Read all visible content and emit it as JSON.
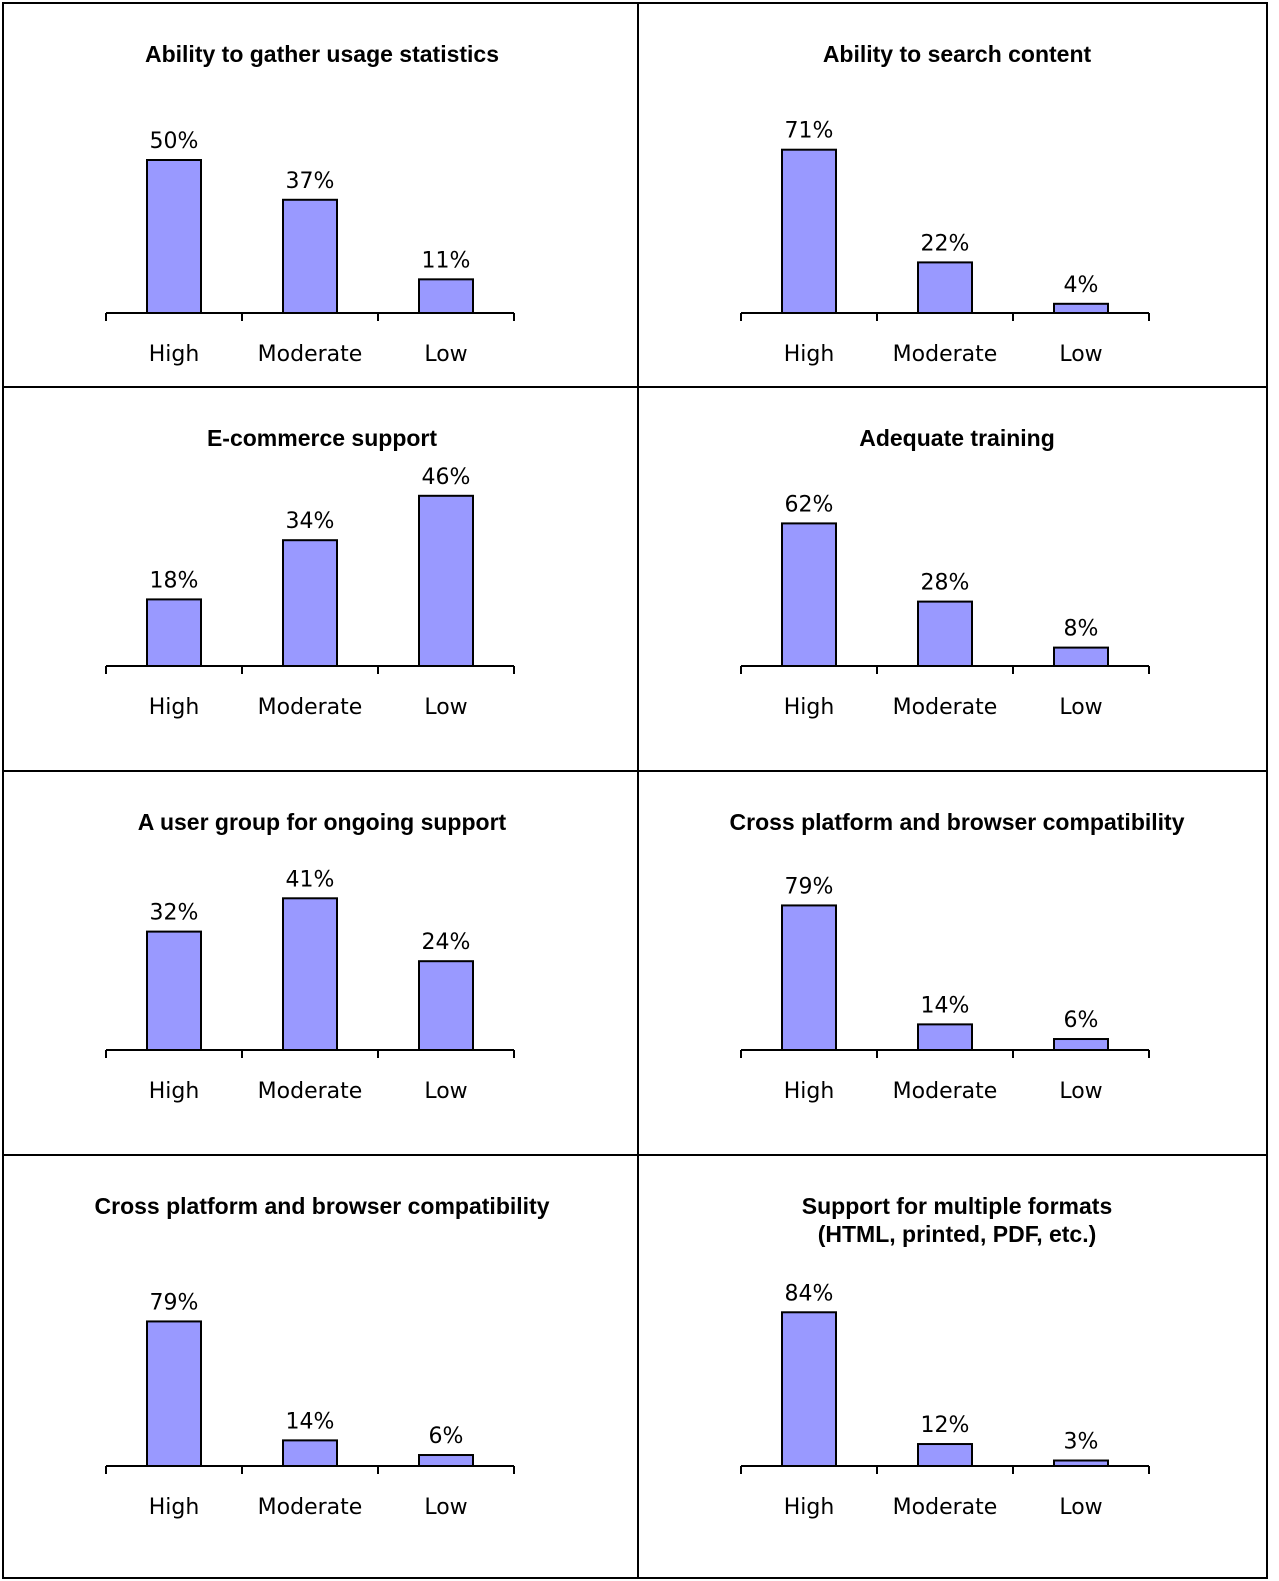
{
  "colors": {
    "bar_fill": "#9999ff",
    "bar_stroke": "#000000",
    "border": "#000000"
  },
  "chart_data": [
    {
      "type": "bar",
      "title": [
        "Ability to gather usage statistics"
      ],
      "categories": [
        "High",
        "Moderate",
        "Low"
      ],
      "values": [
        50,
        37,
        11
      ],
      "labels": [
        "50%",
        "37%",
        "11%"
      ],
      "ylim": [
        0,
        100
      ],
      "grid": false
    },
    {
      "type": "bar",
      "title": [
        "Ability to search content"
      ],
      "categories": [
        "High",
        "Moderate",
        "Low"
      ],
      "values": [
        71,
        22,
        4
      ],
      "labels": [
        "71%",
        "22%",
        "4%"
      ],
      "ylim": [
        0,
        100
      ],
      "grid": false
    },
    {
      "type": "bar",
      "title": [
        "E-commerce support"
      ],
      "categories": [
        "High",
        "Moderate",
        "Low"
      ],
      "values": [
        18,
        34,
        46
      ],
      "labels": [
        "18%",
        "34%",
        "46%"
      ],
      "ylim": [
        0,
        100
      ],
      "grid": false
    },
    {
      "type": "bar",
      "title": [
        "Adequate training"
      ],
      "categories": [
        "High",
        "Moderate",
        "Low"
      ],
      "values": [
        62,
        28,
        8
      ],
      "labels": [
        "62%",
        "28%",
        "8%"
      ],
      "ylim": [
        0,
        100
      ],
      "grid": false
    },
    {
      "type": "bar",
      "title": [
        "A user group for ongoing support"
      ],
      "categories": [
        "High",
        "Moderate",
        "Low"
      ],
      "values": [
        32,
        41,
        24
      ],
      "labels": [
        "32%",
        "41%",
        "24%"
      ],
      "ylim": [
        0,
        100
      ],
      "grid": false
    },
    {
      "type": "bar",
      "title": [
        "Cross platform and browser compatibility"
      ],
      "categories": [
        "High",
        "Moderate",
        "Low"
      ],
      "values": [
        79,
        14,
        6
      ],
      "labels": [
        "79%",
        "14%",
        "6%"
      ],
      "ylim": [
        0,
        100
      ],
      "grid": false
    },
    {
      "type": "bar",
      "title": [
        "Cross platform and browser compatibility"
      ],
      "categories": [
        "High",
        "Moderate",
        "Low"
      ],
      "values": [
        79,
        14,
        6
      ],
      "labels": [
        "79%",
        "14%",
        "6%"
      ],
      "ylim": [
        0,
        100
      ],
      "grid": false
    },
    {
      "type": "bar",
      "title": [
        "Support for multiple formats",
        "(HTML, printed, PDF, etc.)"
      ],
      "categories": [
        "High",
        "Moderate",
        "Low"
      ],
      "values": [
        84,
        12,
        3
      ],
      "labels": [
        "84%",
        "12%",
        "3%"
      ],
      "ylim": [
        0,
        100
      ],
      "grid": false
    }
  ]
}
